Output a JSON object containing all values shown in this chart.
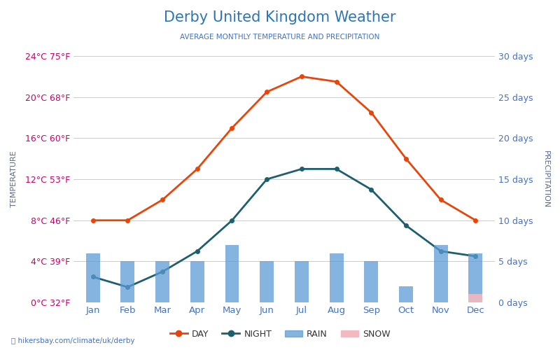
{
  "title": "Derby United Kingdom Weather",
  "subtitle": "AVERAGE MONTHLY TEMPERATURE AND PRECIPITATION",
  "months": [
    "Jan",
    "Feb",
    "Mar",
    "Apr",
    "May",
    "Jun",
    "Jul",
    "Aug",
    "Sep",
    "Oct",
    "Nov",
    "Dec"
  ],
  "day_temp": [
    8.0,
    8.0,
    10.0,
    13.0,
    17.0,
    20.5,
    22.0,
    21.5,
    18.5,
    14.0,
    10.0,
    8.0
  ],
  "night_temp": [
    2.5,
    1.5,
    3.0,
    5.0,
    8.0,
    12.0,
    13.0,
    13.0,
    11.0,
    7.5,
    5.0,
    4.5
  ],
  "rain_days": [
    6,
    5,
    5,
    5,
    7,
    5,
    5,
    6,
    5,
    2,
    7,
    6
  ],
  "snow_days": [
    0,
    0,
    0,
    0,
    0,
    0,
    0,
    0,
    0,
    0,
    0,
    1
  ],
  "day_color": "#e8450a",
  "night_color": "#1d5f6e",
  "rain_color": "#5b9bd5",
  "snow_color": "#f4b8c1",
  "left_yticks_c": [
    0,
    4,
    8,
    12,
    16,
    20,
    24
  ],
  "left_yticks_f": [
    32,
    39,
    46,
    53,
    60,
    68,
    75
  ],
  "right_yticks": [
    0,
    5,
    10,
    15,
    20,
    25,
    30
  ],
  "ylim_temp": [
    0,
    24
  ],
  "ylim_precip": [
    0,
    30
  ],
  "temp_label_color": "#cc0066",
  "precip_label_color": "#4472c4",
  "xlabel_color": "#4472c4",
  "title_color": "#2e75b6",
  "subtitle_color": "#4472c4",
  "axis_label_color": "#5a6a8a",
  "watermark": "hikersbay.com/climate/uk/derby",
  "background_color": "#ffffff",
  "grid_color": "#cccccc"
}
